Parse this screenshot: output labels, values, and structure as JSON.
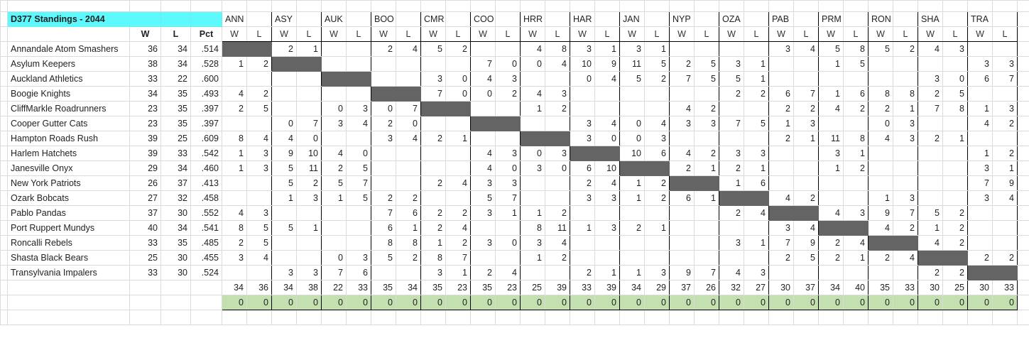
{
  "title": "D377 Standings - 2044",
  "headers": {
    "w": "W",
    "l": "L",
    "pct": "Pct"
  },
  "sub_headers": {
    "w": "W",
    "l": "L"
  },
  "opponents": [
    "ANN",
    "ASY",
    "AUK",
    "BOO",
    "CMR",
    "COO",
    "HRR",
    "HAR",
    "JAN",
    "NYP",
    "OZA",
    "PAB",
    "PRM",
    "RON",
    "SHA",
    "TRA"
  ],
  "teams": [
    {
      "name": "Annandale Atom Smashers",
      "w": 36,
      "l": 34,
      "pct": ".514",
      "records": [
        "self",
        [
          2,
          1
        ],
        null,
        [
          2,
          4
        ],
        [
          5,
          2
        ],
        null,
        [
          4,
          8
        ],
        [
          3,
          1
        ],
        [
          3,
          1
        ],
        null,
        null,
        [
          3,
          4
        ],
        [
          5,
          8
        ],
        [
          5,
          2
        ],
        [
          4,
          3
        ],
        null
      ]
    },
    {
      "name": "Asylum Keepers",
      "w": 38,
      "l": 34,
      "pct": ".528",
      "records": [
        [
          1,
          2
        ],
        "self",
        null,
        null,
        null,
        [
          7,
          0
        ],
        [
          0,
          4
        ],
        [
          10,
          9
        ],
        [
          11,
          5
        ],
        [
          2,
          5
        ],
        [
          3,
          1
        ],
        null,
        [
          1,
          5
        ],
        null,
        null,
        [
          3,
          3
        ]
      ]
    },
    {
      "name": "Auckland Athletics",
      "w": 33,
      "l": 22,
      "pct": ".600",
      "records": [
        null,
        null,
        "self",
        null,
        [
          3,
          0
        ],
        [
          4,
          3
        ],
        null,
        [
          0,
          4
        ],
        [
          5,
          2
        ],
        [
          7,
          5
        ],
        [
          5,
          1
        ],
        null,
        null,
        null,
        [
          3,
          0
        ],
        [
          6,
          7
        ]
      ]
    },
    {
      "name": "Boogie Knights",
      "w": 34,
      "l": 35,
      "pct": ".493",
      "records": [
        [
          4,
          2
        ],
        null,
        null,
        "self",
        [
          7,
          0
        ],
        [
          0,
          2
        ],
        [
          4,
          3
        ],
        null,
        null,
        null,
        [
          2,
          2
        ],
        [
          6,
          7
        ],
        [
          1,
          6
        ],
        [
          8,
          8
        ],
        [
          2,
          5
        ],
        null
      ]
    },
    {
      "name": "CliffMarkle Roadrunners",
      "w": 23,
      "l": 35,
      "pct": ".397",
      "records": [
        [
          2,
          5
        ],
        null,
        [
          0,
          3
        ],
        [
          0,
          7
        ],
        "self",
        null,
        [
          1,
          2
        ],
        null,
        null,
        [
          4,
          2
        ],
        null,
        [
          2,
          2
        ],
        [
          4,
          2
        ],
        [
          2,
          1
        ],
        [
          7,
          8
        ],
        [
          1,
          3
        ]
      ]
    },
    {
      "name": "Cooper Gutter Cats",
      "w": 23,
      "l": 35,
      "pct": ".397",
      "records": [
        null,
        [
          0,
          7
        ],
        [
          3,
          4
        ],
        [
          2,
          0
        ],
        null,
        "self",
        null,
        [
          3,
          4
        ],
        [
          0,
          4
        ],
        [
          3,
          3
        ],
        [
          7,
          5
        ],
        [
          1,
          3
        ],
        null,
        [
          0,
          3
        ],
        null,
        [
          4,
          2
        ]
      ]
    },
    {
      "name": "Hampton Roads Rush",
      "w": 39,
      "l": 25,
      "pct": ".609",
      "records": [
        [
          8,
          4
        ],
        [
          4,
          0
        ],
        null,
        [
          3,
          4
        ],
        [
          2,
          1
        ],
        null,
        "self",
        [
          3,
          0
        ],
        [
          0,
          3
        ],
        null,
        null,
        [
          2,
          1
        ],
        [
          11,
          8
        ],
        [
          4,
          3
        ],
        [
          2,
          1
        ],
        null
      ]
    },
    {
      "name": "Harlem Hatchets",
      "w": 39,
      "l": 33,
      "pct": ".542",
      "records": [
        [
          1,
          3
        ],
        [
          9,
          10
        ],
        [
          4,
          0
        ],
        null,
        null,
        [
          4,
          3
        ],
        [
          0,
          3
        ],
        "self",
        [
          10,
          6
        ],
        [
          4,
          2
        ],
        [
          3,
          3
        ],
        null,
        [
          3,
          1
        ],
        null,
        null,
        [
          1,
          2
        ]
      ]
    },
    {
      "name": "Janesville Onyx",
      "w": 29,
      "l": 34,
      "pct": ".460",
      "records": [
        [
          1,
          3
        ],
        [
          5,
          11
        ],
        [
          2,
          5
        ],
        null,
        null,
        [
          4,
          0
        ],
        [
          3,
          0
        ],
        [
          6,
          10
        ],
        "self",
        [
          2,
          1
        ],
        [
          2,
          1
        ],
        null,
        [
          1,
          2
        ],
        null,
        null,
        [
          3,
          1
        ]
      ]
    },
    {
      "name": "New York Patriots",
      "w": 26,
      "l": 37,
      "pct": ".413",
      "records": [
        null,
        [
          5,
          2
        ],
        [
          5,
          7
        ],
        null,
        [
          2,
          4
        ],
        [
          3,
          3
        ],
        null,
        [
          2,
          4
        ],
        [
          1,
          2
        ],
        "self",
        [
          1,
          6
        ],
        null,
        null,
        null,
        null,
        [
          7,
          9
        ]
      ]
    },
    {
      "name": "Ozark Bobcats",
      "w": 27,
      "l": 32,
      "pct": ".458",
      "records": [
        null,
        [
          1,
          3
        ],
        [
          1,
          5
        ],
        [
          2,
          2
        ],
        null,
        [
          5,
          7
        ],
        null,
        [
          3,
          3
        ],
        [
          1,
          2
        ],
        [
          6,
          1
        ],
        "self",
        [
          4,
          2
        ],
        null,
        [
          1,
          3
        ],
        null,
        [
          3,
          4
        ]
      ]
    },
    {
      "name": "Pablo Pandas",
      "w": 37,
      "l": 30,
      "pct": ".552",
      "records": [
        [
          4,
          3
        ],
        null,
        null,
        [
          7,
          6
        ],
        [
          2,
          2
        ],
        [
          3,
          1
        ],
        [
          1,
          2
        ],
        null,
        null,
        null,
        [
          2,
          4
        ],
        "self",
        [
          4,
          3
        ],
        [
          9,
          7
        ],
        [
          5,
          2
        ],
        null
      ]
    },
    {
      "name": "Port Ruppert Mundys",
      "w": 40,
      "l": 34,
      "pct": ".541",
      "records": [
        [
          8,
          5
        ],
        [
          5,
          1
        ],
        null,
        [
          6,
          1
        ],
        [
          2,
          4
        ],
        null,
        [
          8,
          11
        ],
        [
          1,
          3
        ],
        [
          2,
          1
        ],
        null,
        null,
        [
          3,
          4
        ],
        "self",
        [
          4,
          2
        ],
        [
          1,
          2
        ],
        null
      ]
    },
    {
      "name": "Roncalli Rebels",
      "w": 33,
      "l": 35,
      "pct": ".485",
      "records": [
        [
          2,
          5
        ],
        null,
        null,
        [
          8,
          8
        ],
        [
          1,
          2
        ],
        [
          3,
          0
        ],
        [
          3,
          4
        ],
        null,
        null,
        null,
        [
          3,
          1
        ],
        [
          7,
          9
        ],
        [
          2,
          4
        ],
        "self",
        [
          4,
          2
        ],
        null
      ]
    },
    {
      "name": "Shasta Black Bears",
      "w": 25,
      "l": 30,
      "pct": ".455",
      "records": [
        [
          3,
          4
        ],
        null,
        [
          0,
          3
        ],
        [
          5,
          2
        ],
        [
          8,
          7
        ],
        null,
        [
          1,
          2
        ],
        null,
        null,
        null,
        null,
        [
          2,
          5
        ],
        [
          2,
          1
        ],
        [
          2,
          4
        ],
        "self",
        [
          2,
          2
        ]
      ]
    },
    {
      "name": "Transylvania Impalers",
      "w": 33,
      "l": 30,
      "pct": ".524",
      "records": [
        null,
        [
          3,
          3
        ],
        [
          7,
          6
        ],
        null,
        [
          3,
          1
        ],
        [
          2,
          4
        ],
        null,
        [
          2,
          1
        ],
        [
          1,
          3
        ],
        [
          9,
          7
        ],
        [
          4,
          3
        ],
        null,
        null,
        null,
        [
          2,
          2
        ],
        "self"
      ]
    }
  ],
  "totals": [
    [
      34,
      36
    ],
    [
      34,
      38
    ],
    [
      22,
      33
    ],
    [
      35,
      34
    ],
    [
      35,
      23
    ],
    [
      35,
      23
    ],
    [
      25,
      39
    ],
    [
      33,
      39
    ],
    [
      34,
      29
    ],
    [
      37,
      26
    ],
    [
      32,
      27
    ],
    [
      30,
      37
    ],
    [
      34,
      40
    ],
    [
      35,
      33
    ],
    [
      30,
      25
    ],
    [
      30,
      33
    ]
  ],
  "check_row": [
    [
      0,
      0
    ],
    [
      0,
      0
    ],
    [
      0,
      0
    ],
    [
      0,
      0
    ],
    [
      0,
      0
    ],
    [
      0,
      0
    ],
    [
      0,
      0
    ],
    [
      0,
      0
    ],
    [
      0,
      0
    ],
    [
      0,
      0
    ],
    [
      0,
      0
    ],
    [
      0,
      0
    ],
    [
      0,
      0
    ],
    [
      0,
      0
    ],
    [
      0,
      0
    ],
    [
      0,
      0
    ]
  ],
  "colors": {
    "title_bg": "#5df9fd",
    "self_cell": "#646464",
    "check_row_bg": "#c4dfb0",
    "gridline": "#dadada"
  }
}
